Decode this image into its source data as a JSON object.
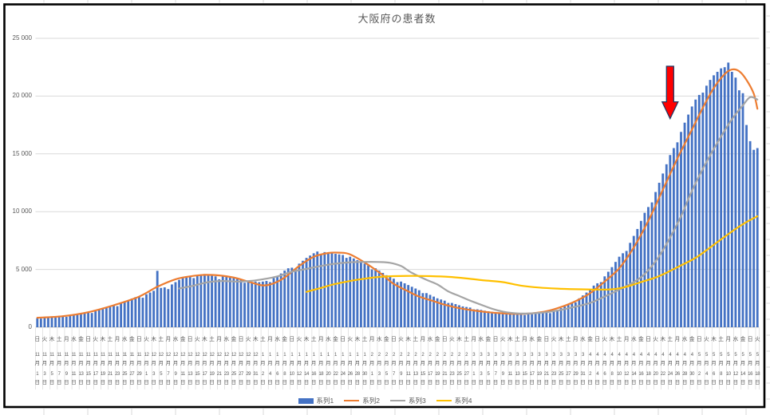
{
  "chart_data": {
    "type": "bar",
    "title": "大阪府の患者数",
    "ylabel": "",
    "xlabel": "",
    "ylim": [
      0,
      25000
    ],
    "grid": true,
    "legend_position": "bottom",
    "y_ticks": [
      {
        "v": 0,
        "label": "0"
      },
      {
        "v": 5000,
        "label": "5 000"
      },
      {
        "v": 10000,
        "label": "10 000"
      },
      {
        "v": 15000,
        "label": "15 000"
      },
      {
        "v": 20000,
        "label": "20 000"
      },
      {
        "v": 25000,
        "label": "25 000"
      }
    ],
    "x_label_note": "labels shown every 2nd day; format weekday / month月 / day日",
    "x_labels": [
      "日|11|1",
      "火|11|3",
      "木|11|5",
      "土|11|7",
      "月|11|9",
      "水|11|11",
      "金|11|13",
      "日|11|15",
      "火|11|17",
      "木|11|19",
      "土|11|21",
      "月|11|23",
      "水|11|25",
      "金|11|27",
      "日|11|29",
      "火|12|1",
      "木|12|3",
      "土|12|5",
      "月|12|7",
      "水|12|9",
      "金|12|11",
      "日|12|13",
      "火|12|15",
      "木|12|17",
      "土|12|19",
      "月|12|21",
      "水|12|23",
      "金|12|25",
      "日|12|27",
      "火|12|29",
      "木|12|31",
      "土|1|2",
      "月|1|4",
      "水|1|6",
      "金|1|8",
      "日|1|10",
      "火|1|12",
      "木|1|14",
      "土|1|16",
      "月|1|18",
      "水|1|20",
      "金|1|22",
      "日|1|24",
      "火|1|26",
      "木|1|28",
      "土|1|30",
      "月|2|1",
      "水|2|3",
      "金|2|5",
      "日|2|7",
      "火|2|9",
      "木|2|11",
      "土|2|13",
      "月|2|15",
      "水|2|17",
      "金|2|19",
      "日|2|21",
      "火|2|23",
      "木|2|25",
      "土|2|27",
      "月|3|1",
      "水|3|3",
      "金|3|5",
      "日|3|7",
      "火|3|9",
      "木|3|11",
      "土|3|13",
      "月|3|15",
      "水|3|17",
      "金|3|19",
      "日|3|21",
      "火|3|23",
      "木|3|25",
      "土|3|27",
      "月|3|29",
      "水|3|31",
      "金|4|2",
      "日|4|4",
      "火|4|6",
      "木|4|8",
      "土|4|10",
      "月|4|12",
      "水|4|14",
      "金|4|16",
      "日|4|18",
      "火|4|20",
      "木|4|22",
      "土|4|24",
      "月|4|26",
      "水|4|28",
      "金|4|30",
      "日|5|2",
      "火|5|4",
      "木|5|6",
      "土|5|8",
      "月|5|10",
      "水|5|12",
      "金|5|14",
      "日|5|16",
      "火|5|18"
    ],
    "bar_series": {
      "name": "系列1",
      "color": "#4472C4",
      "values": [
        780,
        750,
        820,
        860,
        900,
        930,
        950,
        940,
        900,
        1000,
        1080,
        1150,
        1210,
        1280,
        1300,
        1230,
        1380,
        1500,
        1620,
        1730,
        1850,
        1900,
        1820,
        2050,
        2200,
        2350,
        2480,
        2600,
        2650,
        2550,
        2850,
        3000,
        3150,
        4880,
        3400,
        3450,
        3300,
        3700,
        3900,
        4100,
        4250,
        4400,
        4450,
        4250,
        4500,
        4550,
        4600,
        4500,
        4450,
        4400,
        4150,
        4400,
        4350,
        4300,
        4250,
        4200,
        4100,
        3850,
        3950,
        3900,
        3950,
        3900,
        3950,
        4000,
        3900,
        4250,
        4450,
        4650,
        4900,
        5100,
        5150,
        5050,
        5500,
        5750,
        6000,
        6200,
        6400,
        6550,
        6350,
        6500,
        6450,
        6400,
        6350,
        6300,
        6250,
        6000,
        6100,
        5950,
        5800,
        5650,
        5500,
        5350,
        5000,
        5100,
        4900,
        4700,
        4500,
        4350,
        4200,
        3900,
        3950,
        3800,
        3650,
        3500,
        3350,
        3200,
        2950,
        2950,
        2800,
        2650,
        2500,
        2400,
        2300,
        2100,
        2100,
        2000,
        1900,
        1800,
        1750,
        1700,
        1550,
        1550,
        1500,
        1430,
        1380,
        1330,
        1300,
        1200,
        1230,
        1200,
        1170,
        1150,
        1130,
        1120,
        1060,
        1110,
        1130,
        1150,
        1180,
        1220,
        1250,
        1220,
        1380,
        1500,
        1650,
        1800,
        1980,
        2100,
        2150,
        2500,
        2750,
        3000,
        3300,
        3600,
        3800,
        3900,
        4400,
        4800,
        5200,
        5650,
        6100,
        6400,
        6600,
        7300,
        7900,
        8500,
        9200,
        9900,
        10400,
        10800,
        11700,
        12500,
        13300,
        14100,
        14900,
        15500,
        16000,
        16900,
        17700,
        18400,
        19100,
        19700,
        20100,
        20300,
        20900,
        21400,
        21800,
        22100,
        22400,
        22500,
        22900,
        22100,
        21600,
        20500,
        20250,
        17500,
        16100,
        15350,
        15500
      ]
    },
    "line_series": [
      {
        "name": "系列2",
        "color": "#ED7D31",
        "points": [
          [
            0,
            820
          ],
          [
            7,
            950
          ],
          [
            14,
            1300
          ],
          [
            21,
            1900
          ],
          [
            28,
            2650
          ],
          [
            33,
            3500
          ],
          [
            38,
            4150
          ],
          [
            42,
            4400
          ],
          [
            46,
            4530
          ],
          [
            50,
            4480
          ],
          [
            54,
            4300
          ],
          [
            58,
            3950
          ],
          [
            62,
            3620
          ],
          [
            65,
            3800
          ],
          [
            68,
            4300
          ],
          [
            72,
            5300
          ],
          [
            76,
            6100
          ],
          [
            80,
            6420
          ],
          [
            83,
            6450
          ],
          [
            86,
            6300
          ],
          [
            91,
            5400
          ],
          [
            95,
            4500
          ],
          [
            98,
            3750
          ],
          [
            102,
            3100
          ],
          [
            105,
            2650
          ],
          [
            109,
            2250
          ],
          [
            112,
            1950
          ],
          [
            116,
            1650
          ],
          [
            120,
            1450
          ],
          [
            124,
            1300
          ],
          [
            128,
            1200
          ],
          [
            132,
            1150
          ],
          [
            136,
            1200
          ],
          [
            140,
            1380
          ],
          [
            144,
            1750
          ],
          [
            148,
            2250
          ],
          [
            152,
            2950
          ],
          [
            156,
            3950
          ],
          [
            160,
            5100
          ],
          [
            164,
            6900
          ],
          [
            168,
            9200
          ],
          [
            172,
            11900
          ],
          [
            176,
            14600
          ],
          [
            180,
            17100
          ],
          [
            183,
            19000
          ],
          [
            186,
            20700
          ],
          [
            189,
            21900
          ],
          [
            191,
            22300
          ],
          [
            193,
            22150
          ],
          [
            195,
            21400
          ],
          [
            197,
            20200
          ],
          [
            198,
            18900
          ]
        ]
      },
      {
        "name": "系列3",
        "color": "#A5A5A5",
        "points": [
          [
            39,
            3350
          ],
          [
            43,
            3600
          ],
          [
            47,
            3900
          ],
          [
            51,
            4000
          ],
          [
            55,
            3950
          ],
          [
            59,
            4020
          ],
          [
            62,
            4150
          ],
          [
            66,
            4400
          ],
          [
            70,
            4800
          ],
          [
            74,
            5050
          ],
          [
            78,
            5300
          ],
          [
            82,
            5500
          ],
          [
            86,
            5620
          ],
          [
            90,
            5650
          ],
          [
            94,
            5640
          ],
          [
            97,
            5570
          ],
          [
            100,
            5300
          ],
          [
            103,
            4700
          ],
          [
            107,
            4100
          ],
          [
            110,
            3700
          ],
          [
            113,
            3100
          ],
          [
            116,
            2700
          ],
          [
            119,
            2300
          ],
          [
            122,
            1950
          ],
          [
            125,
            1600
          ],
          [
            128,
            1350
          ],
          [
            131,
            1220
          ],
          [
            134,
            1180
          ],
          [
            137,
            1220
          ],
          [
            140,
            1300
          ],
          [
            144,
            1500
          ],
          [
            148,
            1780
          ],
          [
            152,
            2100
          ],
          [
            156,
            2650
          ],
          [
            160,
            3250
          ],
          [
            164,
            3900
          ],
          [
            167,
            4600
          ],
          [
            170,
            5700
          ],
          [
            173,
            7200
          ],
          [
            177,
            9600
          ],
          [
            180,
            11800
          ],
          [
            184,
            14300
          ],
          [
            188,
            16500
          ],
          [
            191,
            18000
          ],
          [
            194,
            19200
          ],
          [
            196,
            19900
          ],
          [
            198,
            19700
          ]
        ]
      },
      {
        "name": "系列4",
        "color": "#FFC000",
        "points": [
          [
            74,
            3060
          ],
          [
            78,
            3400
          ],
          [
            82,
            3750
          ],
          [
            86,
            4000
          ],
          [
            90,
            4200
          ],
          [
            94,
            4350
          ],
          [
            98,
            4420
          ],
          [
            103,
            4440
          ],
          [
            108,
            4420
          ],
          [
            113,
            4360
          ],
          [
            118,
            4220
          ],
          [
            123,
            4050
          ],
          [
            128,
            3900
          ],
          [
            133,
            3600
          ],
          [
            138,
            3430
          ],
          [
            143,
            3340
          ],
          [
            148,
            3290
          ],
          [
            153,
            3260
          ],
          [
            158,
            3280
          ],
          [
            162,
            3500
          ],
          [
            166,
            3910
          ],
          [
            170,
            4300
          ],
          [
            173,
            4720
          ],
          [
            177,
            5350
          ],
          [
            181,
            6000
          ],
          [
            185,
            6900
          ],
          [
            188,
            7600
          ],
          [
            192,
            8500
          ],
          [
            195,
            9100
          ],
          [
            198,
            9600
          ]
        ]
      }
    ],
    "annotation": {
      "type": "arrow-down",
      "fill": "#FF0000",
      "outline": "#203864",
      "day_index": 174,
      "value_top": 22580,
      "value_tip": 18050
    }
  },
  "legend": {
    "items": [
      {
        "label": "系列1",
        "type": "bar",
        "color": "#4472C4"
      },
      {
        "label": "系列2",
        "type": "line",
        "color": "#ED7D31"
      },
      {
        "label": "系列3",
        "type": "line",
        "color": "#A5A5A5"
      },
      {
        "label": "系列4",
        "type": "line",
        "color": "#FFC000"
      }
    ]
  },
  "style": {
    "grid_color": "#D9D9D9",
    "axis_color": "#C0C0C0",
    "text_color": "#595959",
    "border_color": "#000000"
  }
}
